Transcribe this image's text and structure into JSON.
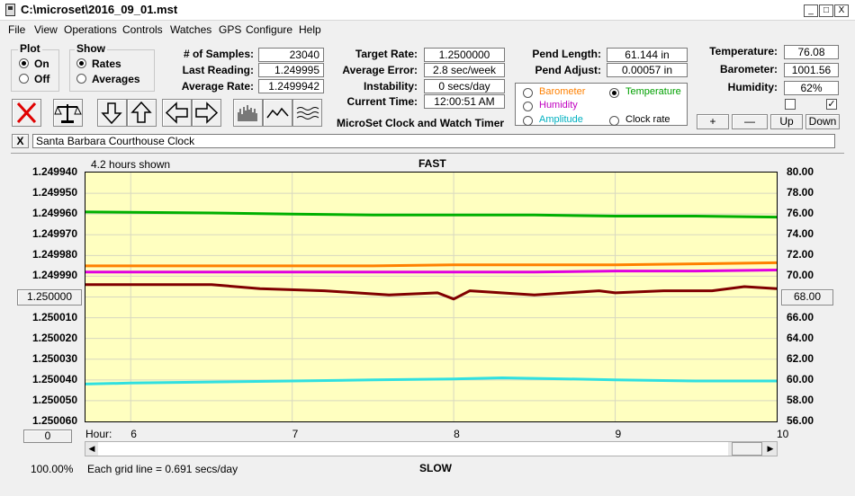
{
  "window": {
    "title": "C:\\microset\\2016_09_01.mst",
    "min": "_",
    "max": "□",
    "close": "X"
  },
  "menu": [
    "File",
    "View",
    "Operations",
    "Controls",
    "Watches",
    "GPS",
    "Configure",
    "Help"
  ],
  "plot_group": {
    "title": "Plot",
    "on": "On",
    "off": "Off",
    "selected": "On"
  },
  "show_group": {
    "title": "Show",
    "rates": "Rates",
    "averages": "Averages",
    "selected": "Rates"
  },
  "stats": {
    "samples_label": "# of Samples:",
    "samples": "23040",
    "last_label": "Last Reading:",
    "last": "1.249995",
    "avg_label": "Average Rate:",
    "avg": "1.2499942"
  },
  "rates": {
    "target_label": "Target Rate:",
    "target": "1.2500000",
    "avg_err_label": "Average Error:",
    "avg_err": "2.8 sec/week",
    "instab_label": "Instability:",
    "instab": "0 secs/day",
    "time_label": "Current Time:",
    "time": "12:00:51 AM",
    "brand": "MicroSet Clock and Watch Timer"
  },
  "pend": {
    "len_label": "Pend Length:",
    "len": "61.144 in",
    "adj_label": "Pend Adjust:",
    "adj": "0.00057 in"
  },
  "env": {
    "temp_label": "Temperature:",
    "temp": "76.08",
    "baro_label": "Barometer:",
    "baro": "1001.56",
    "hum_label": "Humidity:",
    "hum": "62%"
  },
  "sensor_choice": {
    "barometer": "Barometer",
    "temperature": "Temperature",
    "humidity": "Humidity",
    "amplitude": "Amplitude",
    "clock_rate": "Clock rate",
    "selected": "Temperature",
    "colors": {
      "barometer": "#ff8000",
      "temperature": "#00a000",
      "humidity": "#c000c0",
      "amplitude": "#00b0c0",
      "clock_rate": "#000000"
    }
  },
  "scale_buttons": {
    "plus": "+",
    "minus": "—",
    "up": "Up",
    "down": "Down"
  },
  "clock_name": "Santa Barbara Courthouse Clock",
  "clear_btn": "X",
  "graph": {
    "hours_shown": "4.2 hours shown",
    "fast": "FAST",
    "slow": "SLOW",
    "hour_label": "Hour:",
    "zoom": "100.00%",
    "grid_note": "Each grid line = 0.691 secs/day",
    "left_button": "1.250000",
    "right_button": "68.00",
    "bottom_left_button": "0"
  },
  "chart_data": {
    "type": "line",
    "x_label": "Hour:",
    "x_ticks": [
      "6",
      "7",
      "8",
      "9",
      "10"
    ],
    "xlim": [
      5.72,
      10.0
    ],
    "y_left_ticks": [
      "1.249940",
      "1.249950",
      "1.249960",
      "1.249970",
      "1.249980",
      "1.249990",
      "1.250000",
      "1.250010",
      "1.250020",
      "1.250030",
      "1.250040",
      "1.250050",
      "1.250060"
    ],
    "y_left_lim": [
      1.24994,
      1.25006
    ],
    "y_left_inverted": true,
    "y_right_ticks": [
      "80.00",
      "78.00",
      "76.00",
      "74.00",
      "72.00",
      "70.00",
      "68.00",
      "66.00",
      "64.00",
      "62.00",
      "60.00",
      "58.00",
      "56.00"
    ],
    "y_right_lim": [
      56.0,
      80.0
    ],
    "grid": true,
    "series": [
      {
        "color": "#00b000",
        "axis": "right",
        "x": [
          5.72,
          6.5,
          7.0,
          7.5,
          8.0,
          8.5,
          9.0,
          9.5,
          10.0
        ],
        "y": [
          76.2,
          76.1,
          76.0,
          75.9,
          75.9,
          75.9,
          75.8,
          75.8,
          75.7
        ]
      },
      {
        "color": "#ff8000",
        "axis": "right",
        "x": [
          5.72,
          6.5,
          7.0,
          7.5,
          8.0,
          8.5,
          9.0,
          9.5,
          10.0
        ],
        "y": [
          71.0,
          71.0,
          71.0,
          71.0,
          71.1,
          71.1,
          71.1,
          71.2,
          71.3
        ]
      },
      {
        "color": "#e000e0",
        "axis": "right",
        "x": [
          5.72,
          6.5,
          7.0,
          7.5,
          8.0,
          8.5,
          9.0,
          9.5,
          10.0
        ],
        "y": [
          70.4,
          70.4,
          70.4,
          70.4,
          70.4,
          70.4,
          70.5,
          70.5,
          70.6
        ]
      },
      {
        "color": "#800000",
        "axis": "left",
        "x": [
          5.72,
          6.0,
          6.5,
          6.8,
          7.2,
          7.6,
          7.9,
          8.0,
          8.1,
          8.5,
          8.9,
          9.0,
          9.3,
          9.6,
          9.8,
          10.0
        ],
        "y": [
          1.249994,
          1.249994,
          1.249994,
          1.249996,
          1.249997,
          1.249999,
          1.249998,
          1.250001,
          1.249997,
          1.249999,
          1.249997,
          1.249998,
          1.249997,
          1.249997,
          1.249995,
          1.249996
        ]
      },
      {
        "color": "#30e0e0",
        "axis": "right",
        "x": [
          5.72,
          6.0,
          6.5,
          7.0,
          7.5,
          8.0,
          8.3,
          8.7,
          9.0,
          9.5,
          10.0
        ],
        "y": [
          59.6,
          59.7,
          59.8,
          59.9,
          60.0,
          60.1,
          60.2,
          60.1,
          60.0,
          59.9,
          59.9
        ]
      }
    ]
  }
}
